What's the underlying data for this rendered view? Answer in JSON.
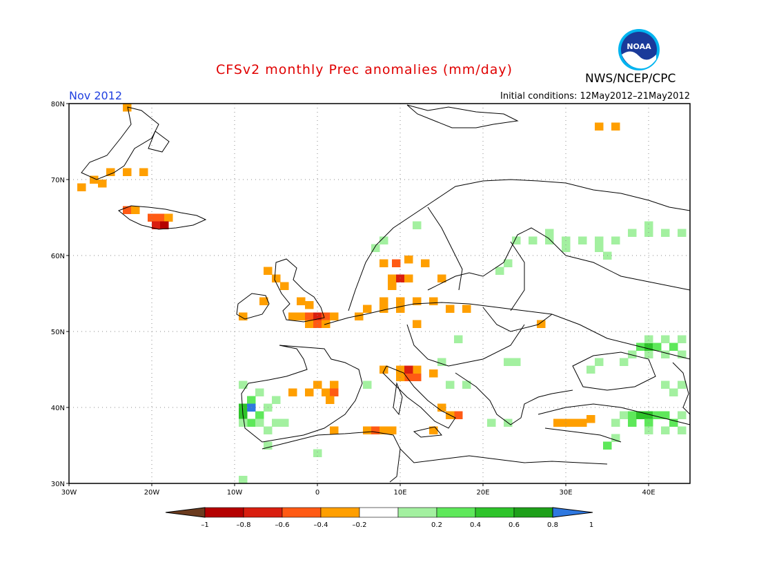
{
  "header": {
    "title": "CFSv2 monthly Prec anomalies (mm/day)",
    "month": "Nov 2012",
    "initial_conditions": "Initial conditions: 12May2012–21May2012",
    "agency": "NWS/NCEP/CPC",
    "logo_text": "NOAA"
  },
  "map": {
    "region": "Europe",
    "lon_range": [
      -30,
      45
    ],
    "lat_range": [
      30,
      80
    ],
    "lat_ticks": [
      "30N",
      "40N",
      "50N",
      "60N",
      "70N",
      "80N"
    ],
    "lon_ticks": [
      "30W",
      "20W",
      "10W",
      "0",
      "10E",
      "20E",
      "30E",
      "40E"
    ],
    "grid": true
  },
  "legend": {
    "labels": [
      "–1",
      "–0.8",
      "–0.6",
      "–0.4",
      "–0.2",
      "0.2",
      "0.4",
      "0.6",
      "0.8",
      "1"
    ],
    "colors": [
      "#6b3b1e",
      "#b50000",
      "#d91e0f",
      "#ff5a14",
      "#ff9f00",
      "#ffffff",
      "#a3f0a0",
      "#5ee85a",
      "#2ec42a",
      "#1ea01a",
      "#2f78e0"
    ]
  },
  "anomaly_colors": {
    "neg_04": "#ff9f00",
    "neg_06": "#ff5a14",
    "neg_08": "#d91e0f",
    "neg_10": "#b50000",
    "pos_02": "#a3f0a0",
    "pos_04": "#5ee85a",
    "pos_06": "#2ec42a",
    "pos_08": "#1ea01a",
    "pos_10": "#2f78e0"
  },
  "anomaly_cells": [
    {
      "lon": -23,
      "lat": 79.5,
      "cls": "neg_04"
    },
    {
      "lon": -25,
      "lat": 71,
      "cls": "neg_04"
    },
    {
      "lon": -23,
      "lat": 71,
      "cls": "neg_04"
    },
    {
      "lon": -21,
      "lat": 71,
      "cls": "neg_04"
    },
    {
      "lon": -27,
      "lat": 70,
      "cls": "neg_04"
    },
    {
      "lon": -26,
      "lat": 69.5,
      "cls": "neg_04"
    },
    {
      "lon": -28.5,
      "lat": 69,
      "cls": "neg_04"
    },
    {
      "lon": -23,
      "lat": 66,
      "cls": "neg_06"
    },
    {
      "lon": -22,
      "lat": 66,
      "cls": "neg_04"
    },
    {
      "lon": -20,
      "lat": 65,
      "cls": "neg_06"
    },
    {
      "lon": -19,
      "lat": 65,
      "cls": "neg_06"
    },
    {
      "lon": -18,
      "lat": 65,
      "cls": "neg_04"
    },
    {
      "lon": -19.5,
      "lat": 64,
      "cls": "neg_08"
    },
    {
      "lon": -18.5,
      "lat": 64,
      "cls": "neg_10"
    },
    {
      "lon": 34,
      "lat": 77,
      "cls": "neg_04"
    },
    {
      "lon": 36,
      "lat": 77,
      "cls": "neg_04"
    },
    {
      "lon": -6,
      "lat": 58,
      "cls": "neg_04"
    },
    {
      "lon": -5,
      "lat": 57,
      "cls": "neg_04"
    },
    {
      "lon": -4,
      "lat": 56,
      "cls": "neg_04"
    },
    {
      "lon": -2,
      "lat": 54,
      "cls": "neg_04"
    },
    {
      "lon": -1,
      "lat": 53.5,
      "cls": "neg_04"
    },
    {
      "lon": -2,
      "lat": 52,
      "cls": "neg_04"
    },
    {
      "lon": -1,
      "lat": 52,
      "cls": "neg_06"
    },
    {
      "lon": 0,
      "lat": 52,
      "cls": "neg_08"
    },
    {
      "lon": 1,
      "lat": 52,
      "cls": "neg_06"
    },
    {
      "lon": 2,
      "lat": 52,
      "cls": "neg_04"
    },
    {
      "lon": -1,
      "lat": 51,
      "cls": "neg_04"
    },
    {
      "lon": 0,
      "lat": 51,
      "cls": "neg_06"
    },
    {
      "lon": 1,
      "lat": 51,
      "cls": "neg_04"
    },
    {
      "lon": -3,
      "lat": 52,
      "cls": "neg_04"
    },
    {
      "lon": -6.5,
      "lat": 54,
      "cls": "neg_04"
    },
    {
      "lon": -9,
      "lat": 52,
      "cls": "neg_04"
    },
    {
      "lon": 5,
      "lat": 52,
      "cls": "neg_04"
    },
    {
      "lon": 6,
      "lat": 53,
      "cls": "neg_04"
    },
    {
      "lon": 8,
      "lat": 53,
      "cls": "neg_04"
    },
    {
      "lon": 10,
      "lat": 53,
      "cls": "neg_04"
    },
    {
      "lon": 8,
      "lat": 54,
      "cls": "neg_04"
    },
    {
      "lon": 10,
      "lat": 54,
      "cls": "neg_04"
    },
    {
      "lon": 12,
      "lat": 54,
      "cls": "neg_04"
    },
    {
      "lon": 14,
      "lat": 54,
      "cls": "neg_04"
    },
    {
      "lon": 16,
      "lat": 53,
      "cls": "neg_04"
    },
    {
      "lon": 18,
      "lat": 53,
      "cls": "neg_04"
    },
    {
      "lon": 12,
      "lat": 51,
      "cls": "neg_04"
    },
    {
      "lon": 8,
      "lat": 59,
      "cls": "neg_04"
    },
    {
      "lon": 9.5,
      "lat": 59,
      "cls": "neg_06"
    },
    {
      "lon": 11,
      "lat": 59.5,
      "cls": "neg_04"
    },
    {
      "lon": 9,
      "lat": 57,
      "cls": "neg_04"
    },
    {
      "lon": 10,
      "lat": 57,
      "cls": "neg_08"
    },
    {
      "lon": 11,
      "lat": 57,
      "cls": "neg_04"
    },
    {
      "lon": 9,
      "lat": 56,
      "cls": "neg_04"
    },
    {
      "lon": 13,
      "lat": 59,
      "cls": "neg_04"
    },
    {
      "lon": 15,
      "lat": 57,
      "cls": "neg_04"
    },
    {
      "lon": 27,
      "lat": 51,
      "cls": "neg_04"
    },
    {
      "lon": -3,
      "lat": 42,
      "cls": "neg_04"
    },
    {
      "lon": -1,
      "lat": 42,
      "cls": "neg_04"
    },
    {
      "lon": 1,
      "lat": 42,
      "cls": "neg_04"
    },
    {
      "lon": 0,
      "lat": 43,
      "cls": "neg_04"
    },
    {
      "lon": 2,
      "lat": 43,
      "cls": "neg_04"
    },
    {
      "lon": 2,
      "lat": 42,
      "cls": "neg_06"
    },
    {
      "lon": 1.5,
      "lat": 41,
      "cls": "neg_04"
    },
    {
      "lon": 8,
      "lat": 45,
      "cls": "neg_04"
    },
    {
      "lon": 10,
      "lat": 45,
      "cls": "neg_04"
    },
    {
      "lon": 11,
      "lat": 44,
      "cls": "neg_06"
    },
    {
      "lon": 12,
      "lat": 44,
      "cls": "neg_06"
    },
    {
      "lon": 10,
      "lat": 44,
      "cls": "neg_04"
    },
    {
      "lon": 12,
      "lat": 45,
      "cls": "neg_04"
    },
    {
      "lon": 14,
      "lat": 44.5,
      "cls": "neg_04"
    },
    {
      "lon": 11,
      "lat": 45,
      "cls": "neg_08"
    },
    {
      "lon": 15,
      "lat": 40,
      "cls": "neg_04"
    },
    {
      "lon": 17,
      "lat": 39,
      "cls": "neg_06"
    },
    {
      "lon": 16,
      "lat": 39,
      "cls": "neg_04"
    },
    {
      "lon": 14,
      "lat": 37,
      "cls": "neg_04"
    },
    {
      "lon": 2,
      "lat": 37,
      "cls": "neg_04"
    },
    {
      "lon": 6,
      "lat": 37,
      "cls": "neg_04"
    },
    {
      "lon": 7,
      "lat": 37,
      "cls": "neg_06"
    },
    {
      "lon": 8,
      "lat": 37,
      "cls": "neg_04"
    },
    {
      "lon": 9,
      "lat": 37,
      "cls": "neg_04"
    },
    {
      "lon": 30,
      "lat": 38,
      "cls": "neg_04"
    },
    {
      "lon": 31,
      "lat": 38,
      "cls": "neg_04"
    },
    {
      "lon": 32,
      "lat": 38,
      "cls": "neg_04"
    },
    {
      "lon": 29,
      "lat": 38,
      "cls": "neg_04"
    },
    {
      "lon": 33,
      "lat": 38.5,
      "cls": "neg_04"
    },
    {
      "lon": 8,
      "lat": 62,
      "cls": "pos_02"
    },
    {
      "lon": 7,
      "lat": 61,
      "cls": "pos_02"
    },
    {
      "lon": 12,
      "lat": 64,
      "cls": "pos_02"
    },
    {
      "lon": 24,
      "lat": 62,
      "cls": "pos_02"
    },
    {
      "lon": 26,
      "lat": 62,
      "cls": "pos_02"
    },
    {
      "lon": 28,
      "lat": 62,
      "cls": "pos_02"
    },
    {
      "lon": 30,
      "lat": 62,
      "cls": "pos_02"
    },
    {
      "lon": 32,
      "lat": 62,
      "cls": "pos_02"
    },
    {
      "lon": 34,
      "lat": 62,
      "cls": "pos_02"
    },
    {
      "lon": 36,
      "lat": 62,
      "cls": "pos_02"
    },
    {
      "lon": 28,
      "lat": 63,
      "cls": "pos_02"
    },
    {
      "lon": 30,
      "lat": 61,
      "cls": "pos_02"
    },
    {
      "lon": 34,
      "lat": 61,
      "cls": "pos_02"
    },
    {
      "lon": 23,
      "lat": 59,
      "cls": "pos_02"
    },
    {
      "lon": 22,
      "lat": 58,
      "cls": "pos_02"
    },
    {
      "lon": 38,
      "lat": 63,
      "cls": "pos_02"
    },
    {
      "lon": 40,
      "lat": 63,
      "cls": "pos_02"
    },
    {
      "lon": 42,
      "lat": 63,
      "cls": "pos_02"
    },
    {
      "lon": 44,
      "lat": 63,
      "cls": "pos_02"
    },
    {
      "lon": 40,
      "lat": 64,
      "cls": "pos_02"
    },
    {
      "lon": 35,
      "lat": 60,
      "cls": "pos_02"
    },
    {
      "lon": 38,
      "lat": 47,
      "cls": "pos_02"
    },
    {
      "lon": 40,
      "lat": 47,
      "cls": "pos_02"
    },
    {
      "lon": 42,
      "lat": 47,
      "cls": "pos_02"
    },
    {
      "lon": 44,
      "lat": 47,
      "cls": "pos_02"
    },
    {
      "lon": 39,
      "lat": 48,
      "cls": "pos_04"
    },
    {
      "lon": 40,
      "lat": 48,
      "cls": "pos_06"
    },
    {
      "lon": 41,
      "lat": 48,
      "cls": "pos_04"
    },
    {
      "lon": 43,
      "lat": 48,
      "cls": "pos_04"
    },
    {
      "lon": 40,
      "lat": 49,
      "cls": "pos_02"
    },
    {
      "lon": 42,
      "lat": 49,
      "cls": "pos_02"
    },
    {
      "lon": 44,
      "lat": 49,
      "cls": "pos_02"
    },
    {
      "lon": 37,
      "lat": 46,
      "cls": "pos_02"
    },
    {
      "lon": 34,
      "lat": 46,
      "cls": "pos_02"
    },
    {
      "lon": 33,
      "lat": 45,
      "cls": "pos_02"
    },
    {
      "lon": 42,
      "lat": 43,
      "cls": "pos_02"
    },
    {
      "lon": 44,
      "lat": 43,
      "cls": "pos_02"
    },
    {
      "lon": 43,
      "lat": 42,
      "cls": "pos_02"
    },
    {
      "lon": 37,
      "lat": 39,
      "cls": "pos_02"
    },
    {
      "lon": 38,
      "lat": 39,
      "cls": "pos_04"
    },
    {
      "lon": 39,
      "lat": 39,
      "cls": "pos_06"
    },
    {
      "lon": 40,
      "lat": 39,
      "cls": "pos_06"
    },
    {
      "lon": 41,
      "lat": 39,
      "cls": "pos_04"
    },
    {
      "lon": 42,
      "lat": 39,
      "cls": "pos_04"
    },
    {
      "lon": 43,
      "lat": 38,
      "cls": "pos_04"
    },
    {
      "lon": 44,
      "lat": 39,
      "cls": "pos_02"
    },
    {
      "lon": 36,
      "lat": 38,
      "cls": "pos_02"
    },
    {
      "lon": 38,
      "lat": 38,
      "cls": "pos_04"
    },
    {
      "lon": 40,
      "lat": 38,
      "cls": "pos_04"
    },
    {
      "lon": 42,
      "lat": 37,
      "cls": "pos_02"
    },
    {
      "lon": 44,
      "lat": 37,
      "cls": "pos_02"
    },
    {
      "lon": 40,
      "lat": 37,
      "cls": "pos_02"
    },
    {
      "lon": 35,
      "lat": 35,
      "cls": "pos_04"
    },
    {
      "lon": 36,
      "lat": 36,
      "cls": "pos_02"
    },
    {
      "lon": -9,
      "lat": 43,
      "cls": "pos_02"
    },
    {
      "lon": -7,
      "lat": 42,
      "cls": "pos_02"
    },
    {
      "lon": -5,
      "lat": 41,
      "cls": "pos_02"
    },
    {
      "lon": -8,
      "lat": 41,
      "cls": "pos_04"
    },
    {
      "lon": -9,
      "lat": 40,
      "cls": "pos_06"
    },
    {
      "lon": -8,
      "lat": 40,
      "cls": "pos_10"
    },
    {
      "lon": -9,
      "lat": 39,
      "cls": "pos_06"
    },
    {
      "lon": -7,
      "lat": 39,
      "cls": "pos_04"
    },
    {
      "lon": -8,
      "lat": 38,
      "cls": "pos_04"
    },
    {
      "lon": -7,
      "lat": 38,
      "cls": "pos_02"
    },
    {
      "lon": -9,
      "lat": 38,
      "cls": "pos_02"
    },
    {
      "lon": -6,
      "lat": 40,
      "cls": "pos_02"
    },
    {
      "lon": -5,
      "lat": 38,
      "cls": "pos_02"
    },
    {
      "lon": -4,
      "lat": 38,
      "cls": "pos_02"
    },
    {
      "lon": -6,
      "lat": 37,
      "cls": "pos_02"
    },
    {
      "lon": -6,
      "lat": 35,
      "cls": "pos_02"
    },
    {
      "lon": 0,
      "lat": 34,
      "cls": "pos_02"
    },
    {
      "lon": -9,
      "lat": 30.5,
      "cls": "pos_02"
    },
    {
      "lon": 15,
      "lat": 46,
      "cls": "pos_02"
    },
    {
      "lon": 16,
      "lat": 43,
      "cls": "pos_02"
    },
    {
      "lon": 18,
      "lat": 43,
      "cls": "pos_02"
    },
    {
      "lon": 23,
      "lat": 46,
      "cls": "pos_02"
    },
    {
      "lon": 24,
      "lat": 46,
      "cls": "pos_02"
    },
    {
      "lon": 6,
      "lat": 43,
      "cls": "pos_02"
    },
    {
      "lon": 17,
      "lat": 49,
      "cls": "pos_02"
    },
    {
      "lon": 21,
      "lat": 38,
      "cls": "pos_02"
    },
    {
      "lon": 23,
      "lat": 38,
      "cls": "pos_02"
    }
  ]
}
